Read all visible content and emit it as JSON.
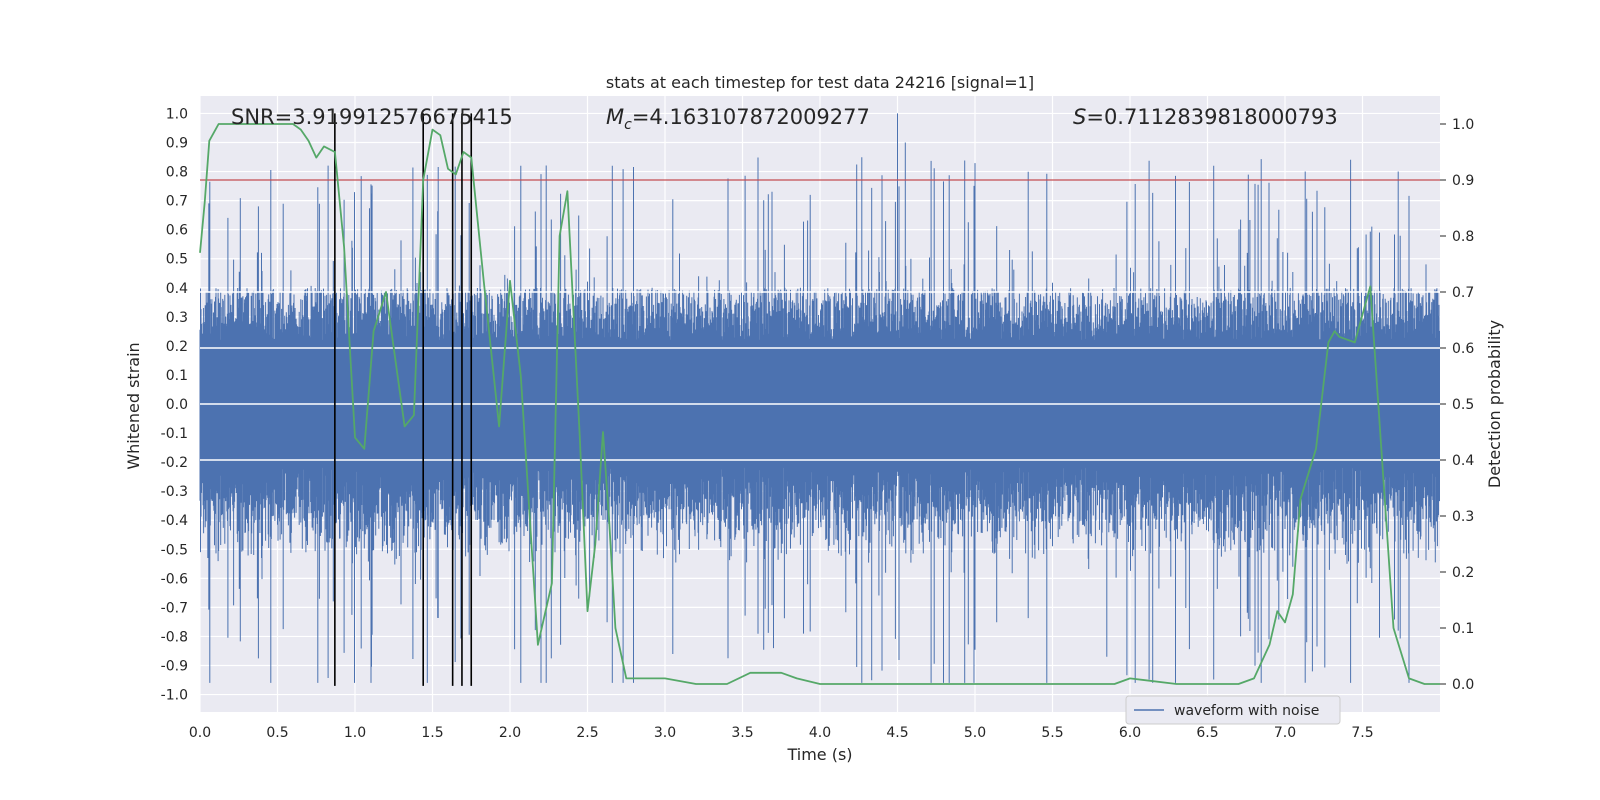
{
  "chart_data": {
    "type": "line",
    "title": "stats at each timestep for test data 24216 [signal=1]",
    "xlabel": "Time (s)",
    "ylabel": "Whitened strain",
    "ylabel_right": "Detection probability",
    "xlim": [
      0.0,
      8.0
    ],
    "ylim": [
      -1.06,
      1.06
    ],
    "ylim_right": [
      -0.05,
      1.05
    ],
    "x_ticks": [
      "0.0",
      "0.5",
      "1.0",
      "1.5",
      "2.0",
      "2.5",
      "3.0",
      "3.5",
      "4.0",
      "4.5",
      "5.0",
      "5.5",
      "6.0",
      "6.5",
      "7.0",
      "7.5"
    ],
    "y_ticks": [
      "1.0",
      "0.9",
      "0.8",
      "0.7",
      "0.6",
      "0.5",
      "0.4",
      "0.3",
      "0.2",
      "0.1",
      "0.0",
      "-0.1",
      "-0.2",
      "-0.3",
      "-0.4",
      "-0.5",
      "-0.6",
      "-0.7",
      "-0.8",
      "-0.9",
      "-1.0"
    ],
    "y_ticks_right": [
      "1.0",
      "0.9",
      "0.8",
      "0.7",
      "0.6",
      "0.5",
      "0.4",
      "0.3",
      "0.2",
      "0.1",
      "0.0"
    ],
    "annotations": {
      "snr": "SNR=3.919912576675415",
      "mc_symbol": "M",
      "mc_sub": "c",
      "mc_value": "=4.163107872009277",
      "s_symbol": "S",
      "s_value": "=0.7112839818000793"
    },
    "legend": {
      "entries": [
        "waveform with noise"
      ],
      "location": "lower right"
    },
    "threshold": {
      "value": 0.9,
      "axis": "right",
      "color": "#c44e52"
    },
    "event_lines": [
      0.87,
      1.44,
      1.63,
      1.69,
      1.75
    ],
    "series": [
      {
        "name": "waveform with noise",
        "color": "#4c72b0",
        "kind": "noise-band",
        "core_amplitude": 0.4,
        "peak_min": -0.96,
        "peak_max": 1.0
      },
      {
        "name": "detection probability",
        "color": "#55a868",
        "axis": "right",
        "x": [
          0.0,
          0.03,
          0.06,
          0.12,
          0.2,
          0.3,
          0.4,
          0.5,
          0.6,
          0.65,
          0.7,
          0.75,
          0.8,
          0.87,
          0.93,
          1.0,
          1.06,
          1.12,
          1.2,
          1.32,
          1.38,
          1.44,
          1.5,
          1.55,
          1.6,
          1.65,
          1.7,
          1.75,
          1.83,
          1.93,
          2.0,
          2.07,
          2.12,
          2.18,
          2.27,
          2.32,
          2.37,
          2.45,
          2.5,
          2.55,
          2.6,
          2.64,
          2.68,
          2.75,
          2.85,
          3.0,
          3.2,
          3.4,
          3.55,
          3.65,
          3.75,
          3.85,
          4.0,
          4.5,
          5.0,
          5.3,
          5.6,
          5.9,
          6.0,
          6.3,
          6.5,
          6.7,
          6.8,
          6.9,
          6.95,
          7.0,
          7.05,
          7.1,
          7.2,
          7.28,
          7.32,
          7.35,
          7.45,
          7.55,
          7.7,
          7.8,
          7.9,
          8.0
        ],
        "y": [
          0.77,
          0.86,
          0.97,
          1.0,
          1.0,
          1.0,
          1.0,
          1.0,
          1.0,
          0.99,
          0.97,
          0.94,
          0.96,
          0.95,
          0.78,
          0.44,
          0.42,
          0.63,
          0.7,
          0.46,
          0.48,
          0.9,
          0.99,
          0.98,
          0.92,
          0.91,
          0.95,
          0.94,
          0.72,
          0.46,
          0.72,
          0.55,
          0.33,
          0.07,
          0.18,
          0.8,
          0.88,
          0.44,
          0.13,
          0.25,
          0.45,
          0.29,
          0.1,
          0.01,
          0.01,
          0.01,
          0.0,
          0.0,
          0.02,
          0.02,
          0.02,
          0.01,
          0.0,
          0.0,
          0.0,
          0.0,
          0.0,
          0.0,
          0.01,
          0.0,
          0.0,
          0.0,
          0.01,
          0.07,
          0.13,
          0.11,
          0.16,
          0.33,
          0.42,
          0.61,
          0.63,
          0.62,
          0.61,
          0.71,
          0.1,
          0.01,
          0.0,
          0.0
        ]
      }
    ]
  }
}
